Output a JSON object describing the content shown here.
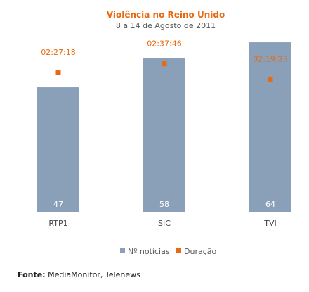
{
  "chart_data": {
    "type": "bar",
    "title": "Violência no Reino Unido",
    "subtitle": "8 a 14 de Agosto de 2011",
    "categories": [
      "RTP1",
      "SIC",
      "TVI"
    ],
    "series": [
      {
        "name": "Nº notícias",
        "kind": "bar",
        "values": [
          47,
          58,
          64
        ]
      },
      {
        "name": "Duração",
        "kind": "marker",
        "values": [
          "02:27:18",
          "02:37:46",
          "02:19:25"
        ]
      }
    ],
    "ylim": [
      0,
      68
    ],
    "grid": false,
    "legend_position": "bottom",
    "colors": {
      "bar": "#8a9fb8",
      "marker": "#e8690f",
      "title": "#e8690f"
    }
  },
  "source": {
    "label": "Fonte:",
    "text": "MediaMonitor, Telenews"
  }
}
